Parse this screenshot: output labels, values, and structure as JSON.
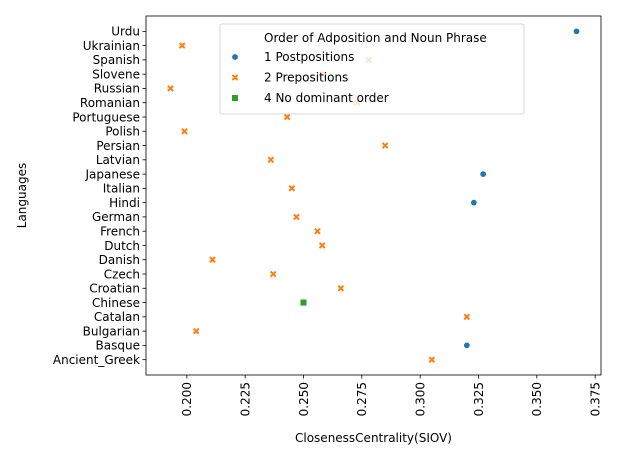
{
  "chart_data": {
    "type": "scatter",
    "xlabel": "ClosenessCentrality(SIOV)",
    "ylabel": "Languages",
    "xlim": [
      0.1825,
      0.3775
    ],
    "x_ticks": [
      "0.200",
      "0.225",
      "0.250",
      "0.275",
      "0.300",
      "0.325",
      "0.350",
      "0.375"
    ],
    "x_tick_values": [
      0.2,
      0.225,
      0.25,
      0.275,
      0.3,
      0.325,
      0.35,
      0.375
    ],
    "categories": [
      "Urdu",
      "Ukrainian",
      "Spanish",
      "Slovene",
      "Russian",
      "Romanian",
      "Portuguese",
      "Polish",
      "Persian",
      "Latvian",
      "Japanese",
      "Italian",
      "Hindi",
      "German",
      "French",
      "Dutch",
      "Danish",
      "Czech",
      "Croatian",
      "Chinese",
      "Catalan",
      "Bulgarian",
      "Basque",
      "Ancient_Greek"
    ],
    "legend": {
      "title": "Order of Adposition and Noun Phrase",
      "placement": "upper-center",
      "entries": [
        {
          "label": "1 Postpositions",
          "color": "#1f77b4",
          "marker": "circle"
        },
        {
          "label": "2 Prepositions",
          "color": "#ff7f0e",
          "marker": "x"
        },
        {
          "label": "4 No dominant order",
          "color": "#2ca02c",
          "marker": "square"
        }
      ]
    },
    "points": [
      {
        "language": "Urdu",
        "x": 0.367,
        "group": 0
      },
      {
        "language": "Ukrainian",
        "x": 0.198,
        "group": 1
      },
      {
        "language": "Spanish",
        "x": 0.278,
        "group": 1
      },
      {
        "language": "Slovene",
        "x": 0.258,
        "group": 1
      },
      {
        "language": "Russian",
        "x": 0.193,
        "group": 1
      },
      {
        "language": "Romanian",
        "x": 0.273,
        "group": 1
      },
      {
        "language": "Portuguese",
        "x": 0.243,
        "group": 1
      },
      {
        "language": "Polish",
        "x": 0.199,
        "group": 1
      },
      {
        "language": "Persian",
        "x": 0.285,
        "group": 1
      },
      {
        "language": "Latvian",
        "x": 0.236,
        "group": 1
      },
      {
        "language": "Japanese",
        "x": 0.327,
        "group": 0
      },
      {
        "language": "Italian",
        "x": 0.245,
        "group": 1
      },
      {
        "language": "Hindi",
        "x": 0.323,
        "group": 0
      },
      {
        "language": "German",
        "x": 0.247,
        "group": 1
      },
      {
        "language": "French",
        "x": 0.256,
        "group": 1
      },
      {
        "language": "Dutch",
        "x": 0.258,
        "group": 1
      },
      {
        "language": "Danish",
        "x": 0.211,
        "group": 1
      },
      {
        "language": "Czech",
        "x": 0.237,
        "group": 1
      },
      {
        "language": "Croatian",
        "x": 0.266,
        "group": 1
      },
      {
        "language": "Chinese",
        "x": 0.25,
        "group": 2
      },
      {
        "language": "Catalan",
        "x": 0.32,
        "group": 1
      },
      {
        "language": "Bulgarian",
        "x": 0.204,
        "group": 1
      },
      {
        "language": "Basque",
        "x": 0.32,
        "group": 0
      },
      {
        "language": "Ancient_Greek",
        "x": 0.305,
        "group": 1
      }
    ]
  }
}
